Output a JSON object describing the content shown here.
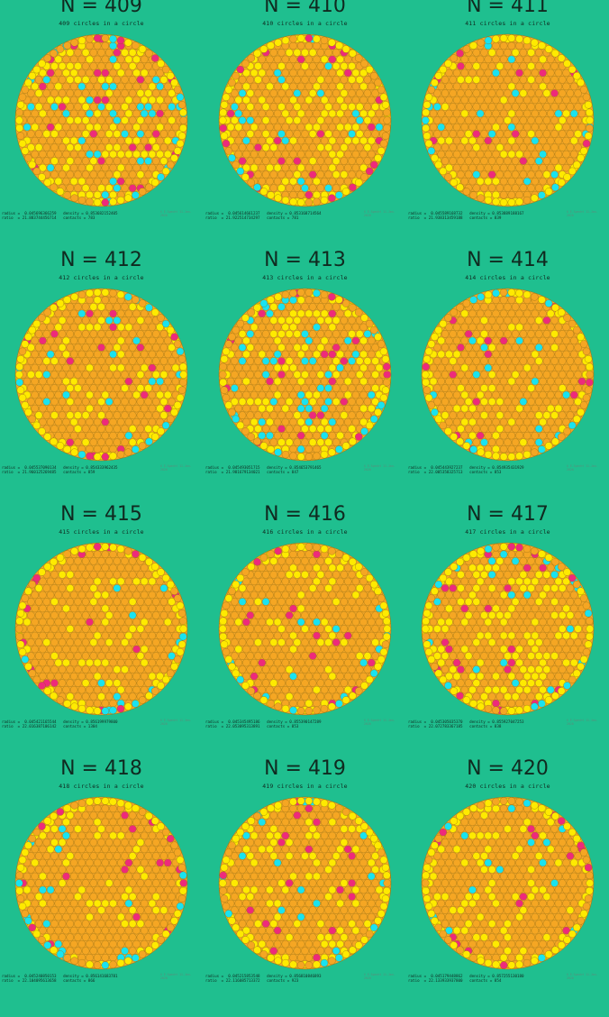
{
  "colors": {
    "background": "#1fbf8f",
    "disk": "#f4a72a",
    "circle_orange": "#f5a623",
    "circle_yellow": "#ffea00",
    "circle_cyan": "#19e3f0",
    "circle_magenta": "#ee2a7b",
    "outline": "#8a6a10"
  },
  "stamp": "© E.Specht\n11-Jan-2020",
  "packings": [
    {
      "heading": "N = 409",
      "subtitle": "409 circles in a circle",
      "radius_line": "radius =  0.045696366259   density = 0.853682152405",
      "ratio_line": "ratio  = 21.883744456714   contacts = 783",
      "mix": [
        0.55,
        0.28,
        0.11,
        0.06
      ],
      "seed": 409
    },
    {
      "heading": "N = 410",
      "subtitle": "410 circles in a circle",
      "radius_line": "radius =  0.045614661237   density = 0.853168714564",
      "ratio_line": "ratio  = 21.922514734297   contacts = 781",
      "mix": [
        0.6,
        0.3,
        0.07,
        0.03
      ],
      "seed": 410
    },
    {
      "heading": "N = 411",
      "subtitle": "411 circles in a circle",
      "radius_line": "radius =  0.045589168732   density = 0.853889188167",
      "ratio_line": "ratio  = 21.938313459188   contacts = 839",
      "mix": [
        0.78,
        0.16,
        0.03,
        0.03
      ],
      "seed": 411
    },
    {
      "heading": "N = 412",
      "subtitle": "412 circles in a circle",
      "radius_line": "radius =  0.045537090134   density = 0.854333962435",
      "ratio_line": "ratio  = 21.960125269485   contacts = 859",
      "mix": [
        0.74,
        0.18,
        0.04,
        0.04
      ],
      "seed": 412
    },
    {
      "heading": "N = 413",
      "subtitle": "413 circles in a circle",
      "radius_line": "radius =  0.045493051715   density = 0.854653791465",
      "ratio_line": "ratio  = 21.981679134021   contacts = 847",
      "mix": [
        0.58,
        0.26,
        0.11,
        0.05
      ],
      "seed": 413
    },
    {
      "heading": "N = 414",
      "subtitle": "414 circles in a circle",
      "radius_line": "radius =  0.045443927237   density = 0.854935431929",
      "ratio_line": "ratio  = 22.005358325713   contacts = 853",
      "mix": [
        0.78,
        0.16,
        0.03,
        0.03
      ],
      "seed": 414
    },
    {
      "heading": "N = 415",
      "subtitle": "415 circles in a circle",
      "radius_line": "radius =  0.045421165544   density = 0.856199979800",
      "ratio_line": "ratio  = 22.016387106142   contacts = 1304",
      "mix": [
        0.8,
        0.16,
        0.02,
        0.02
      ],
      "seed": 415
    },
    {
      "heading": "N = 416",
      "subtitle": "416 circles in a circle",
      "radius_line": "radius =  0.045345495186   density = 0.855390147289",
      "ratio_line": "ratio  = 22.053095313891   contacts = 853",
      "mix": [
        0.78,
        0.16,
        0.02,
        0.04
      ],
      "seed": 416
    },
    {
      "heading": "N = 417",
      "subtitle": "417 circles in a circle",
      "radius_line": "radius =  0.045305035370   density = 0.855927047253",
      "ratio_line": "ratio  = 22.072783367185   contacts = 838",
      "mix": [
        0.58,
        0.33,
        0.05,
        0.04
      ],
      "seed": 417
    },
    {
      "heading": "N = 418",
      "subtitle": "418 circles in a circle",
      "radius_line": "radius =  0.045240850153   density = 0.856141683781",
      "ratio_line": "ratio  = 22.104095613658   contacts = 866",
      "mix": [
        0.78,
        0.16,
        0.03,
        0.03
      ],
      "seed": 418
    },
    {
      "heading": "N = 419",
      "subtitle": "419 circles in a circle",
      "radius_line": "radius =  0.045215853548   density = 0.856810846893",
      "ratio_line": "ratio  = 22.116085713372   contacts = 923",
      "mix": [
        0.74,
        0.19,
        0.03,
        0.04
      ],
      "seed": 419
    },
    {
      "heading": "N = 420",
      "subtitle": "420 circles in a circle",
      "radius_line": "radius =  0.045179448862   density = 0.857255130180",
      "ratio_line": "ratio  = 22.133933937800   contacts = 854",
      "mix": [
        0.8,
        0.16,
        0.02,
        0.02
      ],
      "seed": 420
    }
  ]
}
